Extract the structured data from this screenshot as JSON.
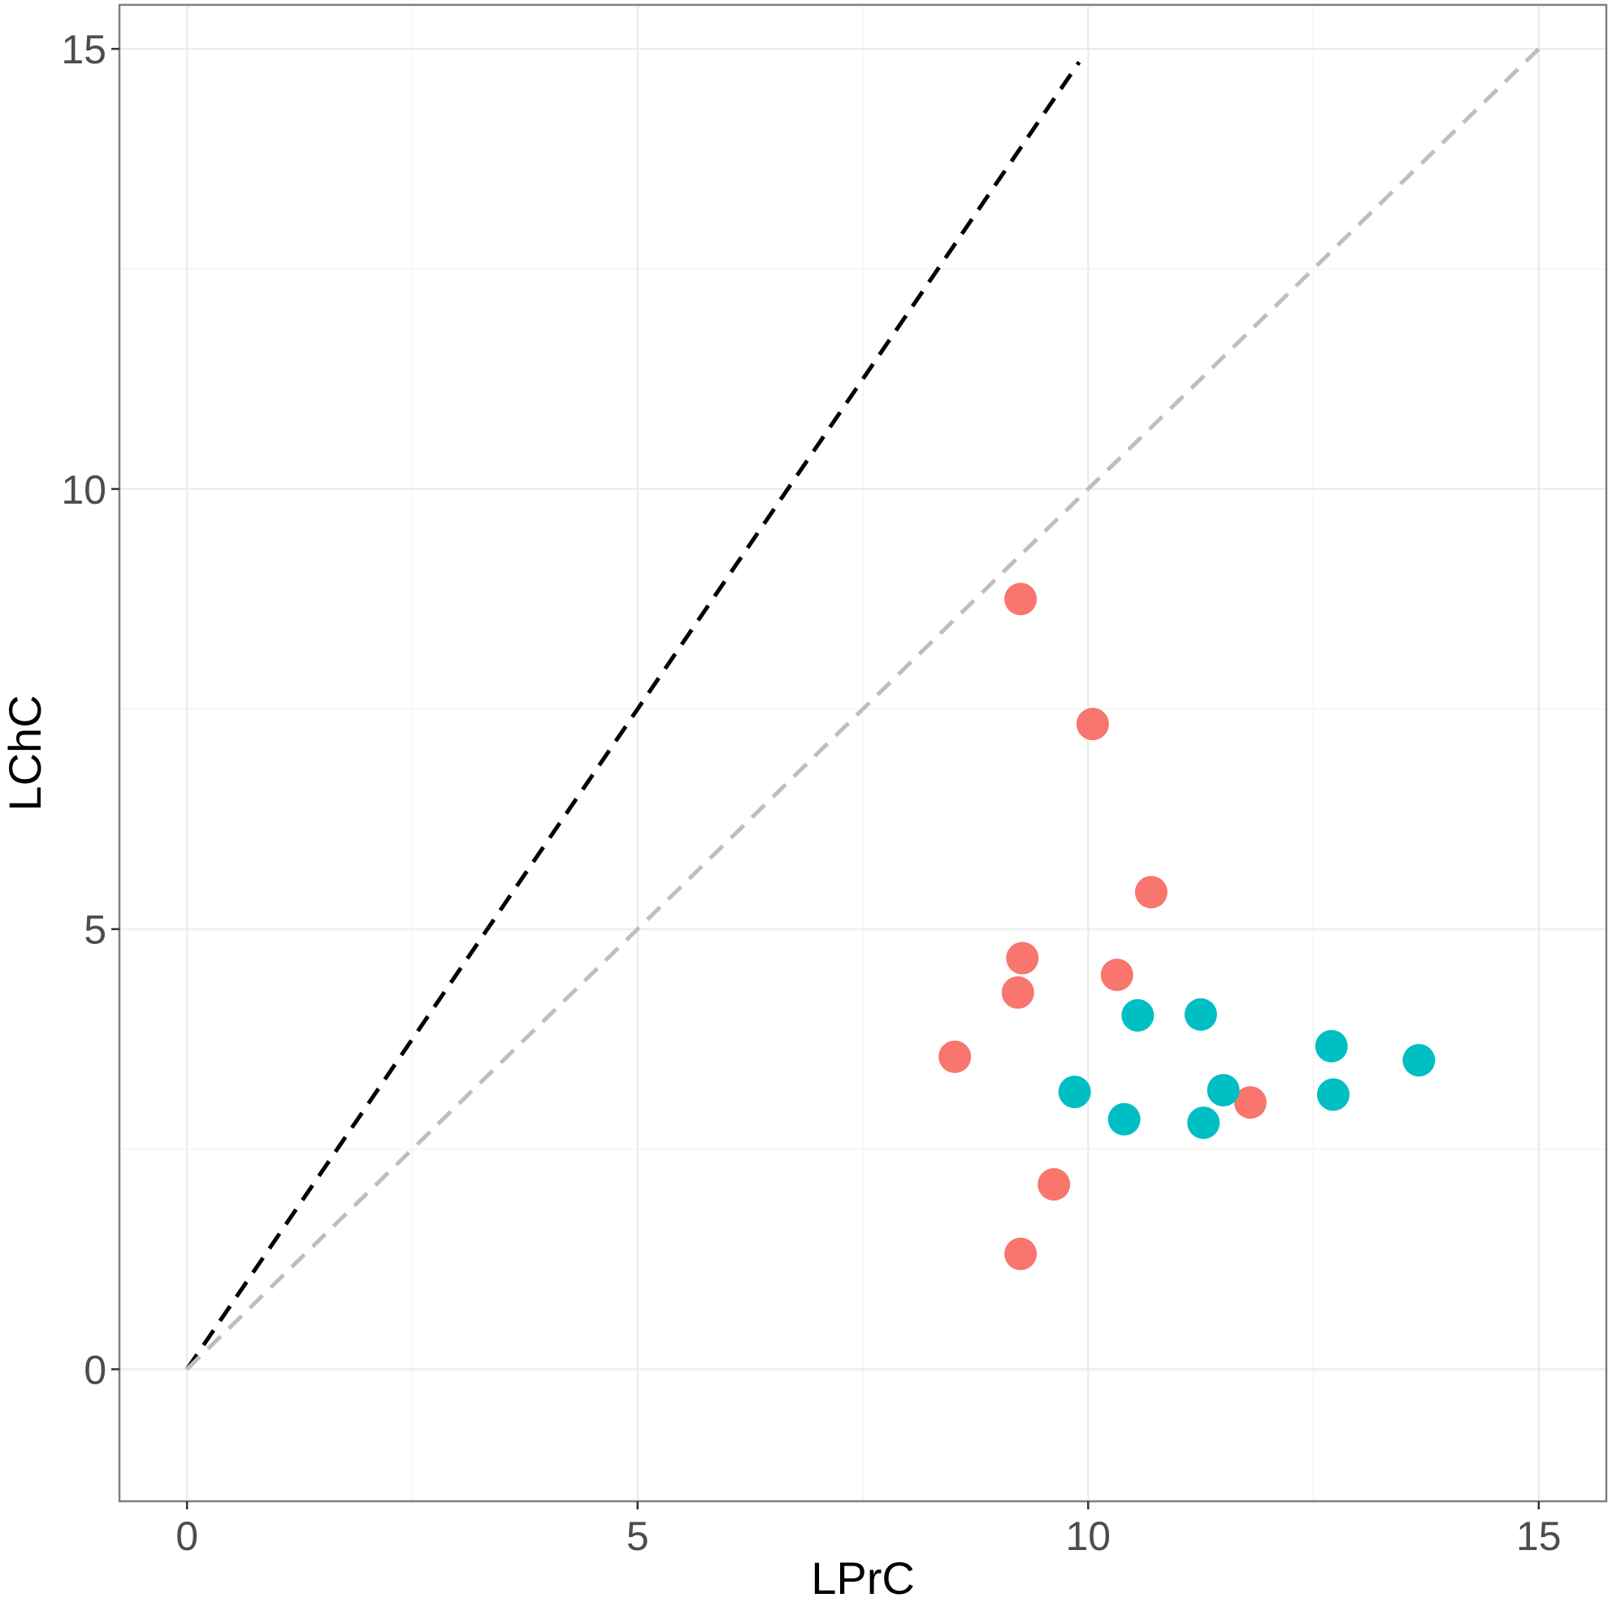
{
  "chart_data": {
    "type": "scatter",
    "title": "",
    "xlabel": "LPrC",
    "ylabel": "LChC",
    "xlim": [
      -0.75,
      15.75
    ],
    "ylim": [
      -1.5,
      15.5
    ],
    "x_ticks": [
      0,
      5,
      10,
      15
    ],
    "y_ticks": [
      0,
      5,
      10,
      15
    ],
    "x_tick_labels": [
      "0",
      "5",
      "10",
      "15"
    ],
    "y_tick_labels": [
      "0",
      "5",
      "10",
      "15"
    ],
    "grid": true,
    "legend": "none",
    "colors": {
      "series_red": "#F8766D",
      "series_teal": "#00BFC4",
      "line_black": "#000000",
      "line_grey": "#BEBEBE",
      "grid": "#EBEBEB",
      "panel_border": "#7F7F7F"
    },
    "reference_lines": [
      {
        "color": "#000000",
        "style": "dashed",
        "from": [
          0,
          0
        ],
        "to": [
          9.9,
          14.85
        ]
      },
      {
        "color": "#BEBEBE",
        "style": "dashed",
        "from": [
          0,
          0
        ],
        "to": [
          15,
          15
        ]
      }
    ],
    "series": [
      {
        "color": "#F8766D",
        "points": [
          {
            "x": 9.25,
            "y": 8.75
          },
          {
            "x": 10.05,
            "y": 7.33
          },
          {
            "x": 10.7,
            "y": 5.42
          },
          {
            "x": 9.27,
            "y": 4.67
          },
          {
            "x": 10.32,
            "y": 4.48
          },
          {
            "x": 9.22,
            "y": 4.28
          },
          {
            "x": 8.52,
            "y": 3.55
          },
          {
            "x": 11.8,
            "y": 3.03
          },
          {
            "x": 9.62,
            "y": 2.1
          },
          {
            "x": 9.25,
            "y": 1.31
          }
        ]
      },
      {
        "color": "#00BFC4",
        "points": [
          {
            "x": 10.55,
            "y": 4.02
          },
          {
            "x": 11.25,
            "y": 4.03
          },
          {
            "x": 12.7,
            "y": 3.67
          },
          {
            "x": 13.67,
            "y": 3.51
          },
          {
            "x": 9.85,
            "y": 3.15
          },
          {
            "x": 11.5,
            "y": 3.17
          },
          {
            "x": 12.72,
            "y": 3.12
          },
          {
            "x": 10.4,
            "y": 2.84
          },
          {
            "x": 11.28,
            "y": 2.8
          }
        ]
      }
    ]
  }
}
